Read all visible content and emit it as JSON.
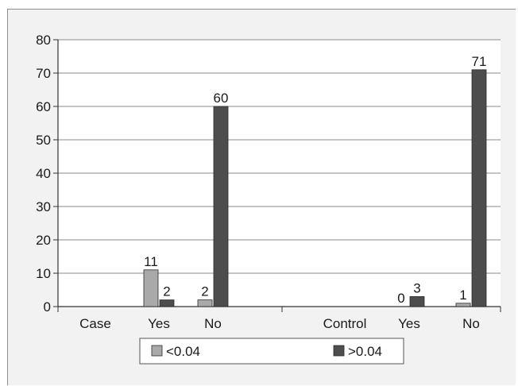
{
  "chart_data": {
    "type": "bar",
    "groups": [
      {
        "label": "Case",
        "categories": [
          "Yes",
          "No"
        ]
      },
      {
        "label": "Control",
        "categories": [
          "Yes",
          "No"
        ]
      }
    ],
    "categories": [
      "Case Yes",
      "Case No",
      "Control Yes",
      "Control No"
    ],
    "series": [
      {
        "name": "<0.04",
        "values": [
          11,
          2,
          0,
          1
        ]
      },
      {
        "name": ">0.04",
        "values": [
          2,
          60,
          3,
          71
        ]
      }
    ],
    "ylim": [
      0,
      80
    ],
    "yticks": [
      0,
      10,
      20,
      30,
      40,
      50,
      60,
      70,
      80
    ],
    "grid": true,
    "legend_position": "bottom",
    "colors": {
      "series_light": "#a9a9a9",
      "series_dark": "#4d4d4d",
      "gridline": "#8a8a8a",
      "axis": "#333333",
      "background": "#f2f2f2"
    }
  }
}
